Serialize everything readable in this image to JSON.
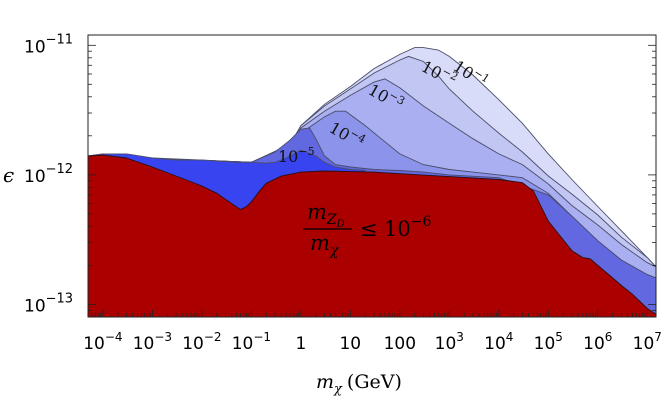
{
  "chart_data": {
    "type": "area",
    "xscale": "log",
    "yscale": "log",
    "xlim": [
      5e-05,
      15000000
    ],
    "ylim": [
      8e-14,
      1.2e-11
    ],
    "x_ticks": [
      {
        "value": 0.0001,
        "label_base": "10",
        "label_exp": "−4"
      },
      {
        "value": 0.001,
        "label_base": "10",
        "label_exp": "−3"
      },
      {
        "value": 0.01,
        "label_base": "10",
        "label_exp": "−2"
      },
      {
        "value": 0.1,
        "label_base": "10",
        "label_exp": "−1"
      },
      {
        "value": 1,
        "label_base": "1",
        "label_exp": ""
      },
      {
        "value": 10,
        "label_base": "10",
        "label_exp": ""
      },
      {
        "value": 100,
        "label_base": "100",
        "label_exp": ""
      },
      {
        "value": 1000,
        "label_base": "10",
        "label_exp": "3"
      },
      {
        "value": 10000,
        "label_base": "10",
        "label_exp": "4"
      },
      {
        "value": 100000,
        "label_base": "10",
        "label_exp": "5"
      },
      {
        "value": 1000000,
        "label_base": "10",
        "label_exp": "6"
      },
      {
        "value": 10000000,
        "label_base": "10",
        "label_exp": "7"
      }
    ],
    "y_ticks": [
      {
        "value": 1e-11,
        "label_base": "10",
        "label_exp": "−11"
      },
      {
        "value": 1e-12,
        "label_base": "10",
        "label_exp": "−12"
      },
      {
        "value": 1e-13,
        "label_base": "10",
        "label_exp": "−13"
      }
    ],
    "xlabel": {
      "symbol": "m",
      "sub": "χ",
      "unit": "(GeV)"
    },
    "ylabel": "ϵ",
    "grid": false,
    "legend": "none",
    "series": [
      {
        "ratio_label": {
          "base": "10",
          "exp": "−1"
        },
        "fill": "#d9dcf8",
        "x": [
          5e-05,
          0.0001,
          0.001,
          0.01,
          0.1,
          0.3,
          0.6,
          1,
          3,
          10,
          30,
          100,
          200,
          300,
          600,
          1000,
          3000,
          10000,
          30000,
          100000,
          300000,
          1000000,
          3000000,
          10000000,
          15000000
        ],
        "y": [
          1.4e-12,
          1.45e-12,
          1.35e-12,
          1.3e-12,
          1.25e-12,
          1.3e-12,
          1.7e-12,
          2.4e-12,
          3.5e-12,
          4.8e-12,
          6.6e-12,
          8.5e-12,
          9.6e-12,
          9.6e-12,
          9.2e-12,
          8.2e-12,
          5.9e-12,
          3.8e-12,
          2.5e-12,
          1.45e-12,
          9.2e-13,
          5.7e-13,
          3.7e-13,
          2.3e-13,
          1.95e-13
        ]
      },
      {
        "ratio_label": {
          "base": "10",
          "exp": "−2"
        },
        "fill": "#c2c6f3",
        "x": [
          5e-05,
          0.1,
          0.6,
          1,
          3,
          10,
          30,
          100,
          150,
          300,
          600,
          1000,
          3000,
          10000,
          30000,
          100000,
          300000,
          1000000,
          3000000,
          10000000,
          15000000
        ],
        "y": [
          1.4e-12,
          1.25e-12,
          1.7e-12,
          2.4e-12,
          3.4e-12,
          4.6e-12,
          6.1e-12,
          7.7e-12,
          8.2e-12,
          7.5e-12,
          5.8e-12,
          4.6e-12,
          3.1e-12,
          2.1e-12,
          1.5e-12,
          9.8e-13,
          7.1e-13,
          4.9e-13,
          3.3e-13,
          2.3e-13,
          1.95e-13
        ]
      },
      {
        "ratio_label": {
          "base": "10",
          "exp": "−3"
        },
        "fill": "#a9aff0",
        "x": [
          5e-05,
          0.1,
          0.6,
          1,
          3,
          10,
          30,
          50,
          100,
          300,
          1000,
          3000,
          10000,
          30000,
          100000,
          300000,
          1000000,
          3000000,
          10000000,
          15000000
        ],
        "y": [
          1.4e-12,
          1.25e-12,
          1.7e-12,
          2.3e-12,
          3.1e-12,
          4.1e-12,
          5.2e-12,
          5.5e-12,
          4.7e-12,
          3.4e-12,
          2.5e-12,
          1.9e-12,
          1.45e-12,
          1.2e-12,
          8.5e-13,
          5.8e-13,
          4.1e-13,
          2.9e-13,
          2.1e-13,
          1.95e-13
        ]
      },
      {
        "ratio_label": {
          "base": "10",
          "exp": "−4"
        },
        "fill": "#8c93ea",
        "x": [
          5e-05,
          0.1,
          0.4,
          1,
          3,
          5,
          8,
          20,
          50,
          100,
          300,
          1000,
          3000,
          10000,
          30000,
          100000,
          300000,
          1000000,
          3000000,
          10000000,
          15000000
        ],
        "y": [
          1.4e-12,
          1.25e-12,
          1.6e-12,
          2.1e-12,
          2.8e-12,
          3.1e-12,
          3.1e-12,
          2.4e-12,
          1.8e-12,
          1.45e-12,
          1.2e-12,
          1.1e-12,
          1.05e-12,
          1e-12,
          9.5e-13,
          7.2e-13,
          4.8e-13,
          3.1e-13,
          2.2e-13,
          1.7e-13,
          1.6e-13
        ]
      },
      {
        "ratio_label": {
          "base": "10",
          "exp": "−5"
        },
        "fill": "#6168e0",
        "x": [
          5e-05,
          0.1,
          0.3,
          0.6,
          1,
          1.5,
          2,
          3,
          5,
          10,
          30,
          100,
          300,
          1000,
          10000,
          100000,
          300000,
          1000000,
          3000000,
          10000000,
          15000000
        ],
        "y": [
          1.4e-12,
          1.25e-12,
          1.5e-12,
          1.85e-12,
          2.25e-12,
          2.3e-12,
          1.9e-12,
          1.4e-12,
          1.2e-12,
          1.15e-12,
          1.1e-12,
          1.08e-12,
          1.05e-12,
          1e-12,
          9.5e-13,
          7e-13,
          4.8e-13,
          3.1e-13,
          2.2e-13,
          1.7e-13,
          1.6e-13
        ]
      },
      {
        "ratio_label": {
          "base": "10",
          "exp": "−6"
        },
        "fill": "#3844ef",
        "x": [
          5e-05,
          0.0001,
          0.0003,
          0.001,
          0.003,
          0.01,
          0.02,
          0.05,
          0.1,
          0.2,
          0.3,
          0.5,
          1,
          2,
          3,
          5,
          10,
          20
        ],
        "y": [
          1.4e-12,
          1.45e-12,
          1.45e-12,
          1.35e-12,
          1.3e-12,
          1.3e-12,
          1.28e-12,
          1.25e-12,
          1.25e-12,
          1.23e-12,
          1.25e-12,
          1.35e-12,
          1.55e-12,
          1.4e-12,
          1.25e-12,
          1.15e-12,
          1.1e-12,
          1.08e-12
        ]
      }
    ],
    "excluded_region": {
      "fill": "#aa0000",
      "label": {
        "num_symbol": "m",
        "num_sub": "Z",
        "num_subsub": "D",
        "den_symbol": "m",
        "den_sub": "χ",
        "relation": "≤",
        "value_base": "10",
        "value_exp": "−6"
      },
      "x": [
        5e-05,
        0.0001,
        0.0003,
        0.001,
        0.003,
        0.01,
        0.02,
        0.04,
        0.06,
        0.08,
        0.1,
        0.15,
        0.2,
        0.4,
        1,
        3,
        10,
        30,
        100,
        1000,
        10000,
        30000,
        50000,
        100000,
        300000,
        500000,
        700000,
        1000000,
        2000000,
        3000000,
        5000000,
        10000000,
        15000000
      ],
      "y": [
        1.4e-12,
        1.42e-12,
        1.35e-12,
        1.15e-12,
        9.8e-13,
        8.2e-13,
        7.2e-13,
        6e-13,
        5.4e-13,
        5.7e-13,
        6.2e-13,
        7.6e-13,
        8.6e-13,
        9.8e-13,
        1.05e-12,
        1.07e-12,
        1.06e-12,
        1.05e-12,
        1.02e-12,
        9.7e-13,
        9.2e-13,
        8.7e-13,
        7.5e-13,
        4.4e-13,
        2.6e-13,
        2.3e-13,
        2.25e-13,
        2e-13,
        1.6e-13,
        1.4e-13,
        1.2e-13,
        9.3e-14,
        8.4e-14
      ]
    }
  }
}
